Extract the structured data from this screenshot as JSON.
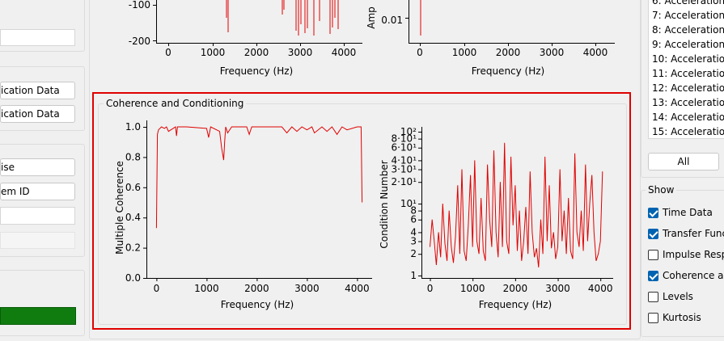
{
  "left_panel": {
    "buttons": [
      "ication Data",
      "ication Data"
    ],
    "fields": [
      "ise",
      "em ID"
    ]
  },
  "top_charts": {
    "left": {
      "xlabel": "Frequency (Hz)",
      "xticks": [
        "0",
        "1000",
        "2000",
        "3000",
        "4000"
      ],
      "yticks": [
        "-100",
        "-200"
      ]
    },
    "right": {
      "xlabel": "Frequency (Hz)",
      "ylabel": "Amp",
      "xticks": [
        "0",
        "1000",
        "2000",
        "3000",
        "4000"
      ],
      "yticks": [
        "0.01"
      ]
    }
  },
  "coherence_group": {
    "title": "Coherence and Conditioning"
  },
  "chart_data": [
    {
      "type": "line",
      "xlabel": "Frequency (Hz)",
      "ylabel": "Multiple Coherence",
      "xlim": [
        -200,
        4300
      ],
      "ylim": [
        0,
        1.0
      ],
      "xticks": [
        "0",
        "1000",
        "2000",
        "3000",
        "4000"
      ],
      "yticks": [
        "0.0",
        "0.2",
        "0.4",
        "0.6",
        "0.8",
        "1.0"
      ],
      "series": [
        {
          "color": "#e00000",
          "x": [
            0,
            20,
            40,
            100,
            160,
            200,
            240,
            380,
            400,
            420,
            600,
            1000,
            1040,
            1080,
            1260,
            1300,
            1340,
            1360,
            1380,
            1420,
            1500,
            1800,
            1850,
            1900,
            2100,
            2500,
            2600,
            2700,
            2800,
            2900,
            3000,
            3100,
            3150,
            3300,
            3400,
            3500,
            3600,
            3700,
            3800,
            4000,
            4080,
            4100
          ],
          "y": [
            0.33,
            0.95,
            0.98,
            1.0,
            0.99,
            1.0,
            0.97,
            1.0,
            0.94,
            1.0,
            1.0,
            0.99,
            0.93,
            1.0,
            0.97,
            0.86,
            0.78,
            0.9,
            1.0,
            0.96,
            1.0,
            1.0,
            0.95,
            1.0,
            1.0,
            1.0,
            0.96,
            1.0,
            0.97,
            1.0,
            0.98,
            1.0,
            0.96,
            1.0,
            0.97,
            1.0,
            0.95,
            1.0,
            0.98,
            1.0,
            1.0,
            0.5
          ]
        }
      ]
    },
    {
      "type": "line",
      "xlabel": "Frequency (Hz)",
      "ylabel": "Condition Number",
      "y_scale": "log",
      "ylim": [
        1,
        100
      ],
      "xlim": [
        -200,
        4300
      ],
      "xticks": [
        "0",
        "1000",
        "2000",
        "3000",
        "4000"
      ],
      "yticks": [
        "1",
        "2",
        "3",
        "4",
        "6",
        "8",
        "10¹",
        "2·10¹",
        "3·10¹",
        "4·10¹",
        "6·10¹",
        "8·10¹",
        "10²"
      ],
      "series": [
        {
          "color": "#e00000",
          "x": [
            0,
            50,
            100,
            150,
            200,
            250,
            300,
            350,
            400,
            450,
            500,
            550,
            600,
            650,
            700,
            750,
            800,
            850,
            900,
            950,
            1000,
            1050,
            1100,
            1150,
            1200,
            1250,
            1300,
            1350,
            1400,
            1450,
            1500,
            1550,
            1600,
            1650,
            1700,
            1750,
            1800,
            1850,
            1900,
            1950,
            2000,
            2050,
            2100,
            2150,
            2200,
            2250,
            2300,
            2350,
            2400,
            2450,
            2500,
            2550,
            2600,
            2650,
            2700,
            2750,
            2800,
            2850,
            2900,
            2950,
            3000,
            3050,
            3100,
            3150,
            3200,
            3250,
            3300,
            3350,
            3400,
            3450,
            3500,
            3550,
            3600,
            3650,
            3700,
            3750,
            3800,
            3850,
            3900,
            3950,
            4000,
            4050
          ],
          "y": [
            2.5,
            6,
            3,
            1.4,
            4,
            1.8,
            10,
            2.8,
            1.6,
            8,
            2.5,
            1.5,
            3.5,
            18,
            2,
            30,
            2.2,
            1.6,
            5,
            25,
            2.5,
            40,
            3,
            2,
            12,
            2.2,
            1.6,
            35,
            6,
            2.5,
            55,
            4,
            1.8,
            20,
            2.5,
            70,
            3,
            2,
            45,
            5,
            18,
            2.2,
            8,
            1.6,
            3,
            9,
            2,
            28,
            4,
            1.8,
            2.4,
            1.3,
            6,
            2,
            45,
            3,
            18,
            2.4,
            4,
            1.7,
            2.5,
            30,
            3,
            8,
            2,
            12,
            2.2,
            1.7,
            50,
            4,
            2.5,
            8,
            2.2,
            35,
            3,
            10,
            25,
            4,
            1.6,
            2,
            3,
            28
          ]
        }
      ]
    }
  ],
  "legend": {
    "items": [
      "6: Acceleration",
      "7: Acceleration",
      "8: Acceleration",
      "9: Acceleration",
      "10: Acceleration",
      "11: Acceleration",
      "12: Acceleration",
      "13: Acceleration",
      "14: Acceleration",
      "15: Acceleration"
    ],
    "all_button": "All"
  },
  "show_group": {
    "title": "Show",
    "options": [
      {
        "label": "Time Data",
        "checked": true
      },
      {
        "label": "Transfer Func",
        "checked": true
      },
      {
        "label": "Impulse Resp",
        "checked": false
      },
      {
        "label": "Coherence ar",
        "checked": true
      },
      {
        "label": "Levels",
        "checked": false
      },
      {
        "label": "Kurtosis",
        "checked": false
      }
    ]
  }
}
